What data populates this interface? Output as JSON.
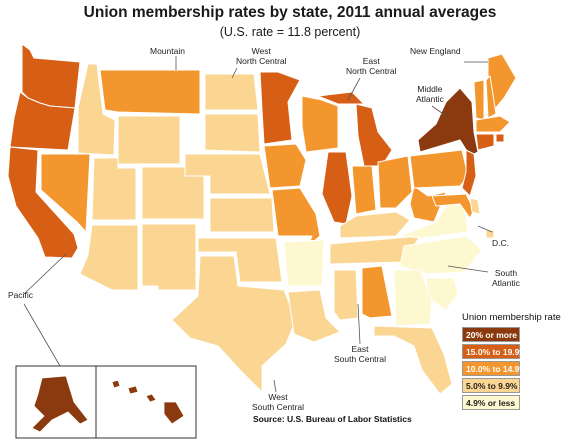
{
  "title": "Union membership rates by state, 2011 annual averages",
  "subtitle": "(U.S. rate = 11.8 percent)",
  "regions": {
    "mountain": "Mountain",
    "west_north_central_1": "West",
    "west_north_central_2": "North Central",
    "east_north_central_1": "East",
    "east_north_central_2": "North Central",
    "new_england": "New England",
    "middle_atlantic_1": "Middle",
    "middle_atlantic_2": "Atlantic",
    "pacific": "Pacific",
    "south_atlantic_1": "South",
    "south_atlantic_2": "Atlantic",
    "dc": "D.C.",
    "east_south_central_1": "East",
    "east_south_central_2": "South Central",
    "west_south_central_1": "West",
    "west_south_central_2": "South Central"
  },
  "legend": {
    "title": "Union membership rate",
    "items": [
      {
        "label": "20% or more",
        "color": "#8b3a0f"
      },
      {
        "label": "15.0% to 19.9%",
        "color": "#d65f15"
      },
      {
        "label": "10.0% to 14.9%",
        "color": "#f3962e"
      },
      {
        "label": "5.0% to 9.9%",
        "color": "#fbd592"
      },
      {
        "label": "4.9% or less",
        "color": "#fdf8d0"
      }
    ]
  },
  "state_categories": {
    "WA": 1,
    "OR": 1,
    "CA": 1,
    "NV": 2,
    "ID": 3,
    "MT": 2,
    "WY": 3,
    "UT": 3,
    "AZ": 3,
    "CO": 3,
    "NM": 3,
    "ND": 3,
    "SD": 3,
    "NE": 3,
    "KS": 3,
    "MN": 1,
    "IA": 2,
    "MO": 2,
    "WI": 2,
    "IL": 1,
    "MI": 1,
    "IN": 2,
    "OH": 2,
    "KY": 3,
    "TN": 3,
    "MS": 3,
    "AL": 2,
    "OK": 3,
    "TX": 3,
    "AR": 4,
    "LA": 3,
    "NY": 0,
    "PA": 2,
    "NJ": 1,
    "WV": 2,
    "VA": 4,
    "NC": 4,
    "SC": 4,
    "GA": 4,
    "FL": 3,
    "MD": 2,
    "DE": 3,
    "DC": 3,
    "ME": 2,
    "NH": 2,
    "VT": 2,
    "MA": 2,
    "RI": 1,
    "CT": 1,
    "AK": 0,
    "HI": 0
  },
  "source": "Source: U.S. Bureau of Labor Statistics"
}
